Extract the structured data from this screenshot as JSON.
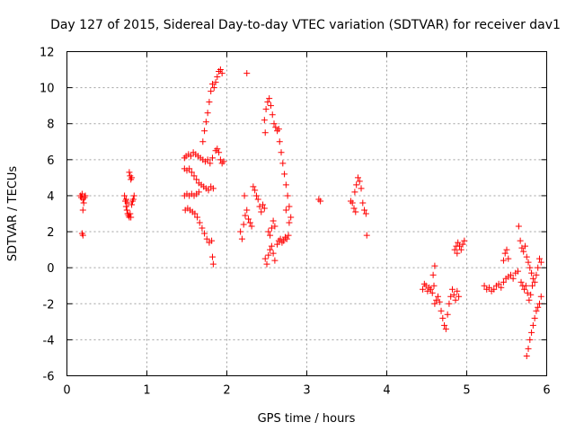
{
  "chart_data": {
    "type": "scatter",
    "title": "Day 127 of 2015, Sidereal Day-to-day VTEC variation (SDTVAR) for receiver dav1",
    "xlabel": "GPS time / hours",
    "ylabel": "SDTVAR / TECUs",
    "xlim": [
      0,
      6
    ],
    "ylim": [
      -6,
      12
    ],
    "xticks": [
      "0",
      "1",
      "2",
      "3",
      "4",
      "5",
      "6"
    ],
    "yticks": [
      "-6",
      "-4",
      "-2",
      "0",
      "2",
      "4",
      "6",
      "8",
      "10",
      "12"
    ],
    "grid": true,
    "marker": "+",
    "color": "#ff0000",
    "series": [
      {
        "name": "SDTVAR",
        "points": [
          [
            0.17,
            4.0
          ],
          [
            0.18,
            3.9
          ],
          [
            0.19,
            4.1
          ],
          [
            0.2,
            3.8
          ],
          [
            0.21,
            3.6
          ],
          [
            0.22,
            3.9
          ],
          [
            0.23,
            4.0
          ],
          [
            0.2,
            3.2
          ],
          [
            0.19,
            1.9
          ],
          [
            0.2,
            1.8
          ],
          [
            0.72,
            4.0
          ],
          [
            0.73,
            3.7
          ],
          [
            0.74,
            3.4
          ],
          [
            0.75,
            3.2
          ],
          [
            0.76,
            3.0
          ],
          [
            0.77,
            2.9
          ],
          [
            0.78,
            2.8
          ],
          [
            0.79,
            3.0
          ],
          [
            0.8,
            2.8
          ],
          [
            0.81,
            3.5
          ],
          [
            0.82,
            3.7
          ],
          [
            0.83,
            3.8
          ],
          [
            0.84,
            4.0
          ],
          [
            0.78,
            5.3
          ],
          [
            0.79,
            5.1
          ],
          [
            0.8,
            4.9
          ],
          [
            0.81,
            5.0
          ],
          [
            0.74,
            3.8
          ],
          [
            0.76,
            3.6
          ],
          [
            1.47,
            6.1
          ],
          [
            1.49,
            6.2
          ],
          [
            1.52,
            6.3
          ],
          [
            1.55,
            6.2
          ],
          [
            1.58,
            6.4
          ],
          [
            1.61,
            6.3
          ],
          [
            1.64,
            6.2
          ],
          [
            1.67,
            6.1
          ],
          [
            1.7,
            6.0
          ],
          [
            1.73,
            5.9
          ],
          [
            1.76,
            6.0
          ],
          [
            1.79,
            5.8
          ],
          [
            1.82,
            6.1
          ],
          [
            1.47,
            5.5
          ],
          [
            1.5,
            5.4
          ],
          [
            1.53,
            5.5
          ],
          [
            1.56,
            5.3
          ],
          [
            1.59,
            5.1
          ],
          [
            1.62,
            4.9
          ],
          [
            1.65,
            4.7
          ],
          [
            1.68,
            4.6
          ],
          [
            1.71,
            4.5
          ],
          [
            1.74,
            4.4
          ],
          [
            1.77,
            4.3
          ],
          [
            1.8,
            4.5
          ],
          [
            1.83,
            4.4
          ],
          [
            1.47,
            4.0
          ],
          [
            1.5,
            4.1
          ],
          [
            1.53,
            4.0
          ],
          [
            1.56,
            4.1
          ],
          [
            1.59,
            4.0
          ],
          [
            1.62,
            4.1
          ],
          [
            1.65,
            4.2
          ],
          [
            1.48,
            3.2
          ],
          [
            1.51,
            3.3
          ],
          [
            1.54,
            3.2
          ],
          [
            1.57,
            3.1
          ],
          [
            1.6,
            3.0
          ],
          [
            1.63,
            2.8
          ],
          [
            1.66,
            2.5
          ],
          [
            1.69,
            2.2
          ],
          [
            1.72,
            1.9
          ],
          [
            1.75,
            1.6
          ],
          [
            1.78,
            1.4
          ],
          [
            1.81,
            1.5
          ],
          [
            1.82,
            0.6
          ],
          [
            1.83,
            0.2
          ],
          [
            1.7,
            7.0
          ],
          [
            1.72,
            7.6
          ],
          [
            1.74,
            8.1
          ],
          [
            1.76,
            8.6
          ],
          [
            1.78,
            9.2
          ],
          [
            1.8,
            9.8
          ],
          [
            1.82,
            10.2
          ],
          [
            1.84,
            10.0
          ],
          [
            1.86,
            10.3
          ],
          [
            1.88,
            10.6
          ],
          [
            1.9,
            10.9
          ],
          [
            1.92,
            11.0
          ],
          [
            1.94,
            10.8
          ],
          [
            1.86,
            6.5
          ],
          [
            1.88,
            6.6
          ],
          [
            1.9,
            6.4
          ],
          [
            1.92,
            6.0
          ],
          [
            1.94,
            5.8
          ],
          [
            1.96,
            5.9
          ],
          [
            2.17,
            2.0
          ],
          [
            2.19,
            1.6
          ],
          [
            2.21,
            2.4
          ],
          [
            2.23,
            2.9
          ],
          [
            2.25,
            3.2
          ],
          [
            2.27,
            2.7
          ],
          [
            2.29,
            2.5
          ],
          [
            2.31,
            2.3
          ],
          [
            2.22,
            4.0
          ],
          [
            2.25,
            10.8
          ],
          [
            2.33,
            4.5
          ],
          [
            2.35,
            4.3
          ],
          [
            2.37,
            4.0
          ],
          [
            2.39,
            3.8
          ],
          [
            2.41,
            3.4
          ],
          [
            2.43,
            3.1
          ],
          [
            2.45,
            3.5
          ],
          [
            2.47,
            3.3
          ],
          [
            2.47,
            8.2
          ],
          [
            2.49,
            8.8
          ],
          [
            2.51,
            9.2
          ],
          [
            2.53,
            9.4
          ],
          [
            2.55,
            9.0
          ],
          [
            2.57,
            8.5
          ],
          [
            2.59,
            8.0
          ],
          [
            2.61,
            7.8
          ],
          [
            2.63,
            7.6
          ],
          [
            2.65,
            7.7
          ],
          [
            2.48,
            7.5
          ],
          [
            2.48,
            0.5
          ],
          [
            2.5,
            0.2
          ],
          [
            2.52,
            0.7
          ],
          [
            2.54,
            1.0
          ],
          [
            2.56,
            1.2
          ],
          [
            2.58,
            0.8
          ],
          [
            2.6,
            0.4
          ],
          [
            2.52,
            2.0
          ],
          [
            2.54,
            1.8
          ],
          [
            2.56,
            2.2
          ],
          [
            2.58,
            2.6
          ],
          [
            2.6,
            2.3
          ],
          [
            2.63,
            1.3
          ],
          [
            2.65,
            1.5
          ],
          [
            2.67,
            1.6
          ],
          [
            2.69,
            1.4
          ],
          [
            2.71,
            1.5
          ],
          [
            2.73,
            1.7
          ],
          [
            2.75,
            1.6
          ],
          [
            2.77,
            1.8
          ],
          [
            2.66,
            7.0
          ],
          [
            2.68,
            6.4
          ],
          [
            2.7,
            5.8
          ],
          [
            2.72,
            5.2
          ],
          [
            2.74,
            4.6
          ],
          [
            2.76,
            4.0
          ],
          [
            2.78,
            3.4
          ],
          [
            2.8,
            2.8
          ],
          [
            2.78,
            2.5
          ],
          [
            2.74,
            3.2
          ],
          [
            3.15,
            3.8
          ],
          [
            3.17,
            3.7
          ],
          [
            3.55,
            3.7
          ],
          [
            3.57,
            3.6
          ],
          [
            3.59,
            3.3
          ],
          [
            3.61,
            3.1
          ],
          [
            3.6,
            4.2
          ],
          [
            3.62,
            4.6
          ],
          [
            3.64,
            5.0
          ],
          [
            3.66,
            4.8
          ],
          [
            3.68,
            4.4
          ],
          [
            3.7,
            3.6
          ],
          [
            3.72,
            3.2
          ],
          [
            3.74,
            3.0
          ],
          [
            3.75,
            1.8
          ],
          [
            4.45,
            -1.2
          ],
          [
            4.47,
            -0.9
          ],
          [
            4.49,
            -1.0
          ],
          [
            4.51,
            -1.3
          ],
          [
            4.53,
            -1.1
          ],
          [
            4.55,
            -1.2
          ],
          [
            4.57,
            -1.4
          ],
          [
            4.59,
            -1.0
          ],
          [
            4.6,
            0.1
          ],
          [
            4.58,
            -0.4
          ],
          [
            4.6,
            -2.0
          ],
          [
            4.62,
            -1.8
          ],
          [
            4.64,
            -1.6
          ],
          [
            4.66,
            -1.9
          ],
          [
            4.68,
            -2.4
          ],
          [
            4.7,
            -2.8
          ],
          [
            4.72,
            -3.2
          ],
          [
            4.74,
            -3.4
          ],
          [
            4.76,
            -2.6
          ],
          [
            4.78,
            -2.0
          ],
          [
            4.8,
            -1.6
          ],
          [
            4.82,
            -1.2
          ],
          [
            4.84,
            -1.5
          ],
          [
            4.86,
            -1.8
          ],
          [
            4.88,
            -1.3
          ],
          [
            4.9,
            -1.6
          ],
          [
            4.85,
            1.0
          ],
          [
            4.87,
            1.2
          ],
          [
            4.89,
            1.4
          ],
          [
            4.91,
            1.2
          ],
          [
            4.93,
            1.0
          ],
          [
            4.95,
            1.3
          ],
          [
            4.97,
            1.5
          ],
          [
            4.88,
            0.8
          ],
          [
            5.22,
            -1.0
          ],
          [
            5.25,
            -1.2
          ],
          [
            5.28,
            -1.1
          ],
          [
            5.31,
            -1.3
          ],
          [
            5.34,
            -1.2
          ],
          [
            5.37,
            -1.0
          ],
          [
            5.4,
            -0.9
          ],
          [
            5.43,
            -1.1
          ],
          [
            5.46,
            -0.8
          ],
          [
            5.49,
            -0.6
          ],
          [
            5.52,
            -0.5
          ],
          [
            5.55,
            -0.4
          ],
          [
            5.58,
            -0.6
          ],
          [
            5.61,
            -0.3
          ],
          [
            5.64,
            -0.2
          ],
          [
            5.46,
            0.4
          ],
          [
            5.48,
            0.8
          ],
          [
            5.5,
            1.0
          ],
          [
            5.52,
            0.5
          ],
          [
            5.65,
            2.3
          ],
          [
            5.67,
            1.5
          ],
          [
            5.69,
            1.1
          ],
          [
            5.71,
            0.9
          ],
          [
            5.73,
            1.2
          ],
          [
            5.75,
            0.6
          ],
          [
            5.77,
            0.3
          ],
          [
            5.79,
            0.0
          ],
          [
            5.81,
            -0.3
          ],
          [
            5.83,
            -0.6
          ],
          [
            5.85,
            -0.8
          ],
          [
            5.87,
            -0.4
          ],
          [
            5.89,
            0.0
          ],
          [
            5.91,
            0.5
          ],
          [
            5.93,
            0.3
          ],
          [
            5.68,
            -0.8
          ],
          [
            5.7,
            -1.0
          ],
          [
            5.72,
            -1.2
          ],
          [
            5.74,
            -1.0
          ],
          [
            5.76,
            -1.4
          ],
          [
            5.78,
            -1.8
          ],
          [
            5.8,
            -1.5
          ],
          [
            5.82,
            -1.0
          ],
          [
            5.75,
            -4.9
          ],
          [
            5.77,
            -4.5
          ],
          [
            5.79,
            -4.0
          ],
          [
            5.81,
            -3.6
          ],
          [
            5.83,
            -3.2
          ],
          [
            5.85,
            -2.8
          ],
          [
            5.87,
            -2.4
          ],
          [
            5.89,
            -2.2
          ],
          [
            5.91,
            -2.0
          ],
          [
            5.93,
            -1.6
          ]
        ]
      }
    ]
  }
}
